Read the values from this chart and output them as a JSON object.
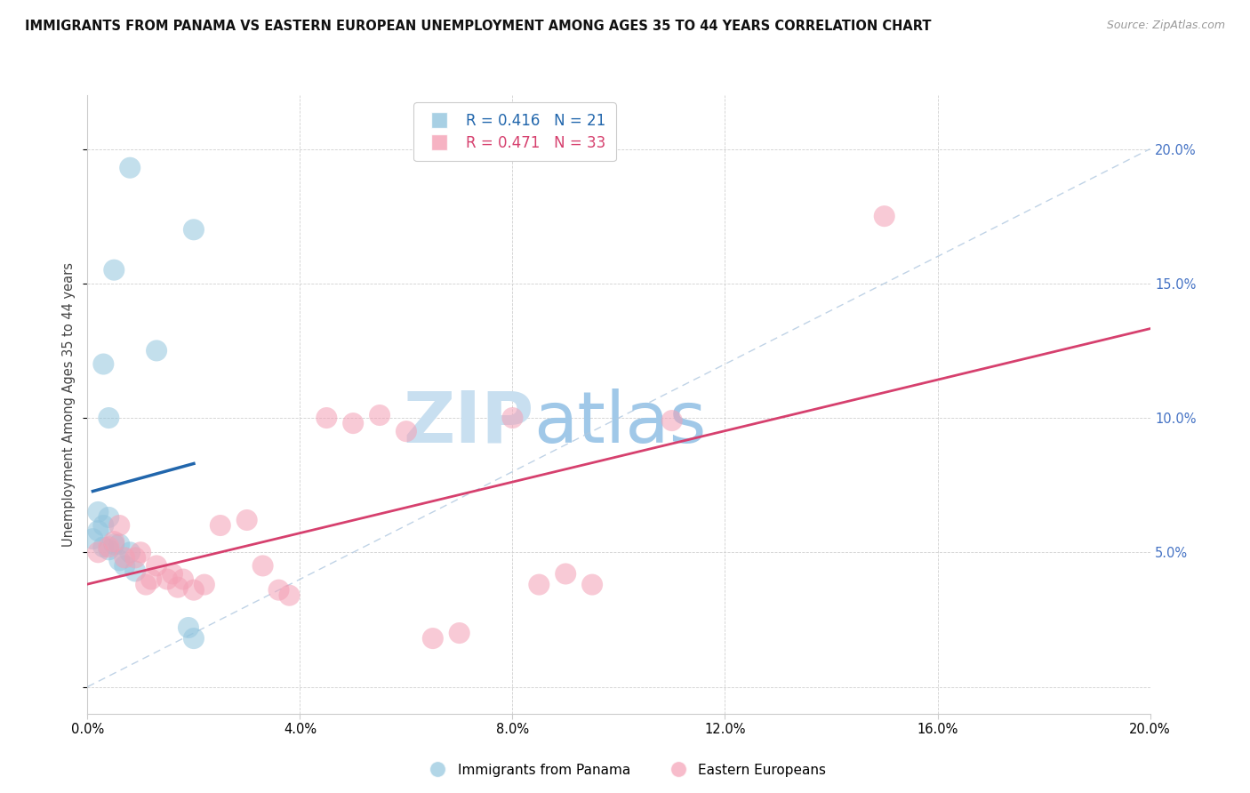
{
  "title": "IMMIGRANTS FROM PANAMA VS EASTERN EUROPEAN UNEMPLOYMENT AMONG AGES 35 TO 44 YEARS CORRELATION CHART",
  "source": "Source: ZipAtlas.com",
  "ylabel": "Unemployment Among Ages 35 to 44 years",
  "xlim": [
    0.0,
    0.2
  ],
  "ylim": [
    -0.01,
    0.22
  ],
  "xticks": [
    0.0,
    0.04,
    0.08,
    0.12,
    0.16,
    0.2
  ],
  "yticks": [
    0.0,
    0.05,
    0.1,
    0.15,
    0.2
  ],
  "ytick_labels_right": [
    "",
    "5.0%",
    "10.0%",
    "15.0%",
    "20.0%"
  ],
  "blue_color": "#92c5de",
  "pink_color": "#f4a0b5",
  "blue_line_color": "#2166ac",
  "pink_line_color": "#d6406e",
  "legend_blue_R": "R = 0.416",
  "legend_blue_N": "N = 21",
  "legend_pink_R": "R = 0.471",
  "legend_pink_N": "N = 33",
  "blue_scatter_x": [
    0.008,
    0.02,
    0.005,
    0.013,
    0.003,
    0.004,
    0.002,
    0.004,
    0.003,
    0.002,
    0.001,
    0.005,
    0.006,
    0.003,
    0.004,
    0.008,
    0.006,
    0.007,
    0.009,
    0.019,
    0.02
  ],
  "blue_scatter_y": [
    0.193,
    0.17,
    0.155,
    0.125,
    0.12,
    0.1,
    0.065,
    0.063,
    0.06,
    0.058,
    0.055,
    0.053,
    0.053,
    0.052,
    0.051,
    0.05,
    0.047,
    0.045,
    0.043,
    0.022,
    0.018
  ],
  "pink_scatter_x": [
    0.002,
    0.004,
    0.005,
    0.006,
    0.007,
    0.009,
    0.01,
    0.011,
    0.012,
    0.013,
    0.015,
    0.016,
    0.017,
    0.018,
    0.02,
    0.022,
    0.025,
    0.03,
    0.033,
    0.036,
    0.038,
    0.045,
    0.05,
    0.055,
    0.06,
    0.065,
    0.07,
    0.08,
    0.085,
    0.09,
    0.095,
    0.11,
    0.15
  ],
  "pink_scatter_y": [
    0.05,
    0.052,
    0.054,
    0.06,
    0.048,
    0.048,
    0.05,
    0.038,
    0.04,
    0.045,
    0.04,
    0.042,
    0.037,
    0.04,
    0.036,
    0.038,
    0.06,
    0.062,
    0.045,
    0.036,
    0.034,
    0.1,
    0.098,
    0.101,
    0.095,
    0.018,
    0.02,
    0.1,
    0.038,
    0.042,
    0.038,
    0.099,
    0.175
  ],
  "watermark_zip": "ZIP",
  "watermark_atlas": "atlas",
  "watermark_color_zip": "#c8dff0",
  "watermark_color_atlas": "#a0c8e8"
}
